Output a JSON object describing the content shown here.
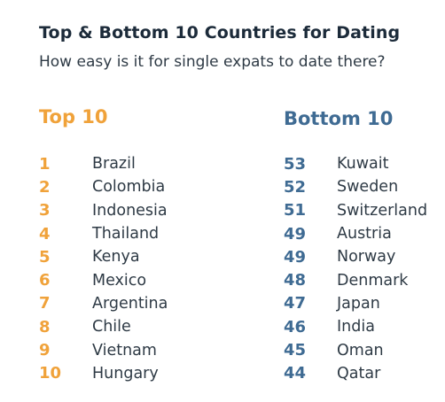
{
  "title": "Top & Bottom 10 Countries for Dating",
  "subtitle": "How easy is it for single expats to date there?",
  "colors": {
    "title": "#1c2b3a",
    "text": "#2e3a45",
    "top_accent": "#f0a23a",
    "bottom_accent": "#3f6b93"
  },
  "top": {
    "heading": "Top 10",
    "items": [
      {
        "rank": "1",
        "country": "Brazil"
      },
      {
        "rank": "2",
        "country": "Colombia"
      },
      {
        "rank": "3",
        "country": "Indonesia"
      },
      {
        "rank": "4",
        "country": "Thailand"
      },
      {
        "rank": "5",
        "country": "Kenya"
      },
      {
        "rank": "6",
        "country": "Mexico"
      },
      {
        "rank": "7",
        "country": "Argentina"
      },
      {
        "rank": "8",
        "country": "Chile"
      },
      {
        "rank": "9",
        "country": "Vietnam"
      },
      {
        "rank": "10",
        "country": "Hungary"
      }
    ]
  },
  "bottom": {
    "heading": "Bottom 10",
    "items": [
      {
        "rank": "53",
        "country": "Kuwait"
      },
      {
        "rank": "52",
        "country": "Sweden"
      },
      {
        "rank": "51",
        "country": "Switzerland"
      },
      {
        "rank": "49",
        "country": "Austria"
      },
      {
        "rank": "49",
        "country": "Norway"
      },
      {
        "rank": "48",
        "country": "Denmark"
      },
      {
        "rank": "47",
        "country": "Japan"
      },
      {
        "rank": "46",
        "country": "India"
      },
      {
        "rank": "45",
        "country": "Oman"
      },
      {
        "rank": "44",
        "country": "Qatar"
      }
    ]
  }
}
